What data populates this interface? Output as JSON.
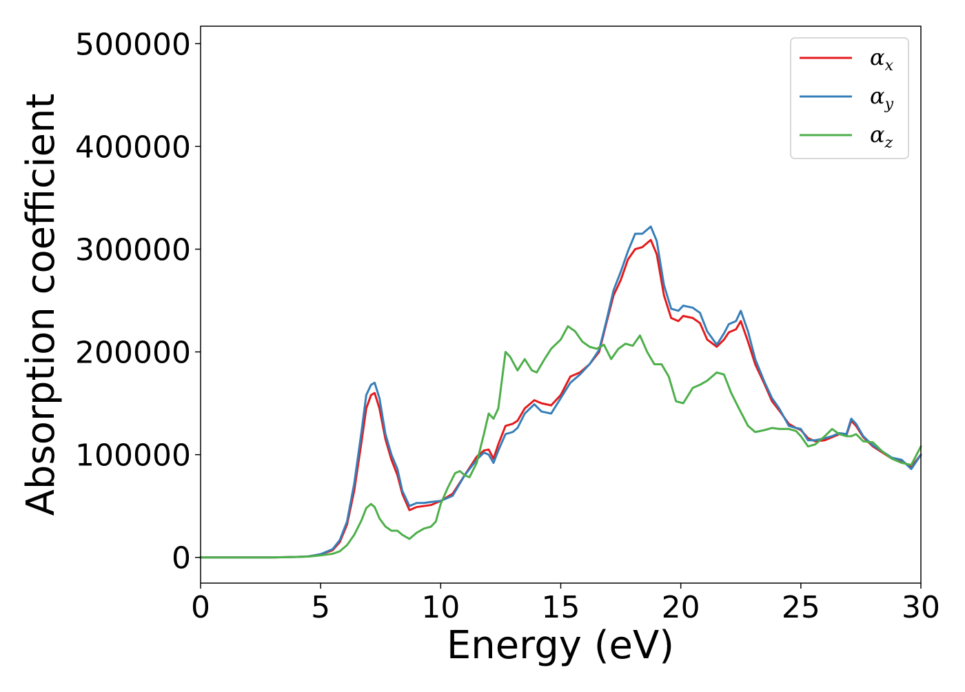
{
  "chart_data": {
    "type": "line",
    "title": "",
    "xlabel": "Energy (eV)",
    "ylabel": "Absorption coefficient",
    "xlim": [
      0,
      30
    ],
    "ylim": [
      -25000,
      517000
    ],
    "xticks": [
      0,
      5,
      10,
      15,
      20,
      25,
      30
    ],
    "yticks": [
      0,
      100000,
      200000,
      300000,
      400000,
      500000
    ],
    "grid": false,
    "legend_position": "top-right",
    "series": [
      {
        "name": "αx",
        "symbol": "α",
        "subscript": "x",
        "color": "#e41a1c",
        "x": [
          0,
          1,
          2,
          3,
          4,
          4.5,
          5,
          5.5,
          5.8,
          6.1,
          6.4,
          6.7,
          6.9,
          7.1,
          7.25,
          7.45,
          7.7,
          7.95,
          8.2,
          8.4,
          8.7,
          9.0,
          9.3,
          9.6,
          10.0,
          10.5,
          11.0,
          11.5,
          11.8,
          12.0,
          12.2,
          12.4,
          12.7,
          13.0,
          13.2,
          13.5,
          13.9,
          14.2,
          14.6,
          15.0,
          15.4,
          15.8,
          16.2,
          16.6,
          16.9,
          17.2,
          17.5,
          17.8,
          18.1,
          18.4,
          18.75,
          19.0,
          19.3,
          19.6,
          19.9,
          20.1,
          20.5,
          20.8,
          21.1,
          21.5,
          21.8,
          22.0,
          22.3,
          22.5,
          22.8,
          23.1,
          23.5,
          23.8,
          24.1,
          24.5,
          24.8,
          25.0,
          25.3,
          25.6,
          26.0,
          26.3,
          26.6,
          26.9,
          27.1,
          27.3,
          27.6,
          28.0,
          28.4,
          28.8,
          29.2,
          29.6,
          30.0
        ],
        "y": [
          0,
          0,
          0,
          0,
          500,
          1000,
          3000,
          7000,
          15000,
          32000,
          65000,
          112000,
          145000,
          158000,
          160000,
          145000,
          115000,
          95000,
          80000,
          62000,
          46000,
          49000,
          50000,
          51000,
          55000,
          62000,
          80000,
          98000,
          104000,
          105000,
          96000,
          110000,
          128000,
          130000,
          133000,
          145000,
          153000,
          150000,
          148000,
          158000,
          176000,
          180000,
          188000,
          200000,
          228000,
          255000,
          270000,
          290000,
          300000,
          302000,
          309000,
          295000,
          255000,
          233000,
          230000,
          235000,
          233000,
          228000,
          212000,
          205000,
          212000,
          219000,
          222000,
          230000,
          210000,
          188000,
          168000,
          152000,
          143000,
          130000,
          126000,
          124000,
          116000,
          113000,
          114000,
          117000,
          120000,
          119000,
          133000,
          128000,
          117000,
          108000,
          102000,
          96000,
          94000,
          88000,
          100000
        ]
      },
      {
        "name": "αy",
        "symbol": "α",
        "subscript": "y",
        "color": "#377eb8",
        "x": [
          0,
          1,
          2,
          3,
          4,
          4.5,
          5,
          5.5,
          5.8,
          6.1,
          6.4,
          6.7,
          6.9,
          7.1,
          7.25,
          7.45,
          7.7,
          7.95,
          8.2,
          8.4,
          8.7,
          9.0,
          9.3,
          9.6,
          10.0,
          10.5,
          11.0,
          11.5,
          11.8,
          12.0,
          12.2,
          12.4,
          12.7,
          13.0,
          13.2,
          13.5,
          13.9,
          14.2,
          14.6,
          15.0,
          15.4,
          15.8,
          16.2,
          16.6,
          16.9,
          17.2,
          17.5,
          17.8,
          18.1,
          18.4,
          18.75,
          19.0,
          19.3,
          19.6,
          19.9,
          20.1,
          20.5,
          20.8,
          21.1,
          21.5,
          21.8,
          22.0,
          22.3,
          22.5,
          22.8,
          23.1,
          23.5,
          23.8,
          24.1,
          24.5,
          24.8,
          25.0,
          25.3,
          25.6,
          26.0,
          26.3,
          26.6,
          26.9,
          27.1,
          27.3,
          27.6,
          28.0,
          28.4,
          28.8,
          29.2,
          29.6,
          30.0
        ],
        "y": [
          0,
          0,
          0,
          0,
          500,
          1000,
          3200,
          8000,
          17000,
          35000,
          72000,
          122000,
          158000,
          168000,
          170000,
          155000,
          120000,
          100000,
          86000,
          65000,
          50000,
          53000,
          53000,
          54000,
          55000,
          60000,
          80000,
          95000,
          102000,
          100000,
          92000,
          104000,
          120000,
          122000,
          126000,
          140000,
          149000,
          142000,
          140000,
          155000,
          170000,
          178000,
          188000,
          202000,
          230000,
          260000,
          278000,
          298000,
          315000,
          315000,
          322000,
          308000,
          265000,
          242000,
          240000,
          245000,
          243000,
          238000,
          220000,
          207000,
          218000,
          227000,
          230000,
          240000,
          220000,
          193000,
          170000,
          155000,
          145000,
          128000,
          126000,
          125000,
          114000,
          114000,
          116000,
          118000,
          121000,
          120000,
          135000,
          130000,
          118000,
          109000,
          103000,
          97000,
          95000,
          86000,
          100000
        ]
      },
      {
        "name": "αz",
        "symbol": "α",
        "subscript": "z",
        "color": "#4daf4a",
        "x": [
          0,
          1,
          2,
          3,
          4,
          4.5,
          5,
          5.5,
          5.8,
          6.1,
          6.4,
          6.7,
          6.9,
          7.1,
          7.25,
          7.45,
          7.7,
          7.95,
          8.2,
          8.4,
          8.7,
          9.0,
          9.3,
          9.6,
          9.8,
          10.0,
          10.3,
          10.6,
          10.8,
          11.0,
          11.2,
          11.5,
          11.8,
          12.0,
          12.2,
          12.4,
          12.7,
          12.9,
          13.2,
          13.5,
          13.8,
          14.0,
          14.3,
          14.6,
          15.0,
          15.3,
          15.6,
          15.9,
          16.2,
          16.5,
          16.8,
          17.1,
          17.4,
          17.7,
          18.0,
          18.3,
          18.6,
          18.9,
          19.2,
          19.5,
          19.8,
          20.1,
          20.5,
          20.8,
          21.1,
          21.5,
          21.8,
          22.1,
          22.4,
          22.8,
          23.1,
          23.5,
          23.8,
          24.1,
          24.5,
          24.8,
          25.0,
          25.3,
          25.6,
          26.0,
          26.3,
          26.6,
          26.9,
          27.1,
          27.3,
          27.6,
          28.0,
          28.4,
          28.8,
          29.2,
          29.6,
          30.0
        ],
        "y": [
          0,
          0,
          0,
          0,
          400,
          800,
          2000,
          3500,
          6000,
          12000,
          22000,
          36000,
          48000,
          52000,
          49000,
          38000,
          30000,
          26000,
          26000,
          22000,
          18000,
          24000,
          28000,
          30000,
          35000,
          52000,
          68000,
          82000,
          84000,
          80000,
          78000,
          92000,
          120000,
          140000,
          135000,
          145000,
          200000,
          195000,
          182000,
          193000,
          182000,
          180000,
          192000,
          203000,
          212000,
          225000,
          220000,
          210000,
          205000,
          203000,
          207000,
          193000,
          203000,
          208000,
          206000,
          216000,
          200000,
          188000,
          188000,
          176000,
          152000,
          150000,
          165000,
          168000,
          172000,
          180000,
          178000,
          160000,
          146000,
          128000,
          122000,
          124000,
          126000,
          125000,
          125000,
          123000,
          118000,
          108000,
          110000,
          118000,
          125000,
          120000,
          118000,
          118000,
          120000,
          113000,
          112000,
          103000,
          96000,
          92000,
          90000,
          108000
        ]
      }
    ]
  }
}
